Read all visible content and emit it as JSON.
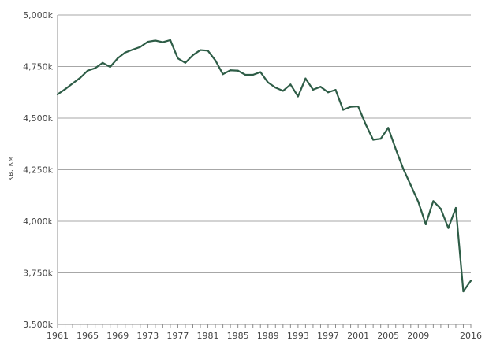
{
  "chart_data": {
    "type": "line",
    "title": "",
    "xlabel": "",
    "ylabel": "кв. км",
    "xlim": [
      1961,
      2016
    ],
    "ylim": [
      3500,
      5000
    ],
    "grid": "horizontal",
    "legend": "none",
    "x_ticks": [
      "1961",
      "1965",
      "1969",
      "1973",
      "1977",
      "1981",
      "1985",
      "1989",
      "1993",
      "1997",
      "2001",
      "2005",
      "2009",
      "2016"
    ],
    "y_ticks": [
      {
        "value": 3500,
        "label": "3,500k"
      },
      {
        "value": 3750,
        "label": "3,750k"
      },
      {
        "value": 4000,
        "label": "4,000k"
      },
      {
        "value": 4250,
        "label": "4,250k"
      },
      {
        "value": 4500,
        "label": "4,500k"
      },
      {
        "value": 4750,
        "label": "4,750k"
      },
      {
        "value": 5000,
        "label": "5,000k"
      }
    ],
    "colors": {
      "series": "#2e5d47",
      "grid": "#a7a7a7"
    },
    "series": [
      {
        "color": "#2e5d47",
        "x": [
          1961,
          1962,
          1963,
          1964,
          1965,
          1966,
          1967,
          1968,
          1969,
          1970,
          1971,
          1972,
          1973,
          1974,
          1975,
          1976,
          1977,
          1978,
          1979,
          1980,
          1981,
          1982,
          1983,
          1984,
          1985,
          1986,
          1987,
          1988,
          1989,
          1990,
          1991,
          1992,
          1993,
          1994,
          1995,
          1996,
          1997,
          1998,
          1999,
          2000,
          2001,
          2002,
          2003,
          2004,
          2005,
          2006,
          2007,
          2008,
          2009,
          2010,
          2011,
          2012,
          2013,
          2014,
          2015,
          2016
        ],
        "values": [
          4615,
          4640,
          4668,
          4695,
          4730,
          4742,
          4768,
          4748,
          4790,
          4818,
          4832,
          4845,
          4870,
          4876,
          4868,
          4878,
          4790,
          4768,
          4805,
          4830,
          4827,
          4780,
          4713,
          4732,
          4730,
          4710,
          4710,
          4723,
          4673,
          4648,
          4632,
          4663,
          4605,
          4692,
          4638,
          4652,
          4625,
          4637,
          4540,
          4555,
          4557,
          4470,
          4395,
          4400,
          4453,
          4350,
          4255,
          4175,
          4095,
          3985,
          4098,
          4060,
          3967,
          4065,
          3660,
          3712
        ]
      }
    ]
  }
}
